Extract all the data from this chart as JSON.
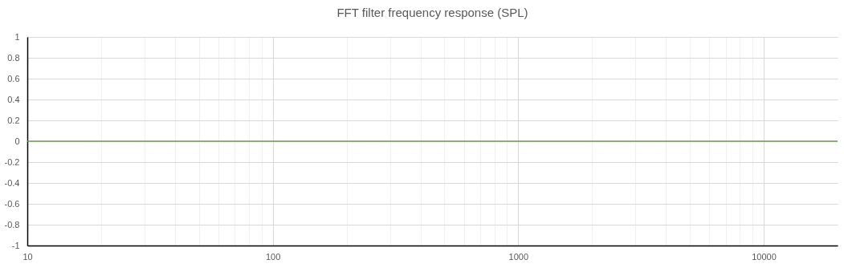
{
  "chart_data": {
    "type": "line",
    "title": "FFT filter frequency response (SPL)",
    "x": [
      10,
      20000
    ],
    "series": [
      {
        "color": "#6e9a50",
        "values": [
          0,
          0
        ]
      }
    ],
    "log": "x",
    "xlim": [
      10,
      20000
    ],
    "xticks": [
      10,
      {
        "value": 20,
        "label": null
      },
      {
        "value": 30,
        "label": null
      },
      {
        "value": 40,
        "label": null
      },
      {
        "value": 50,
        "label": null
      },
      {
        "value": 60,
        "label": null
      },
      {
        "value": 70,
        "label": null
      },
      {
        "value": 80,
        "label": null
      },
      {
        "value": 90,
        "label": null
      },
      100,
      {
        "value": 200,
        "label": null
      },
      {
        "value": 300,
        "label": null
      },
      {
        "value": 400,
        "label": null
      },
      {
        "value": 500,
        "label": null
      },
      {
        "value": 600,
        "label": null
      },
      {
        "value": 700,
        "label": null
      },
      {
        "value": 800,
        "label": null
      },
      {
        "value": 900,
        "label": null
      },
      1000,
      {
        "value": 2000,
        "label": null
      },
      {
        "value": 3000,
        "label": null
      },
      {
        "value": 4000,
        "label": null
      },
      {
        "value": 5000,
        "label": null
      },
      {
        "value": 6000,
        "label": null
      },
      {
        "value": 7000,
        "label": null
      },
      {
        "value": 8000,
        "label": null
      },
      {
        "value": 9000,
        "label": null
      },
      10000
    ],
    "ylim": [
      -1,
      1
    ],
    "yticks": [
      -1,
      -0.8,
      -0.6,
      -0.4,
      -0.2,
      0,
      0.2,
      0.4,
      0.6,
      0.8,
      1
    ],
    "grid": true,
    "marker": "none",
    "line_style": "solid"
  }
}
